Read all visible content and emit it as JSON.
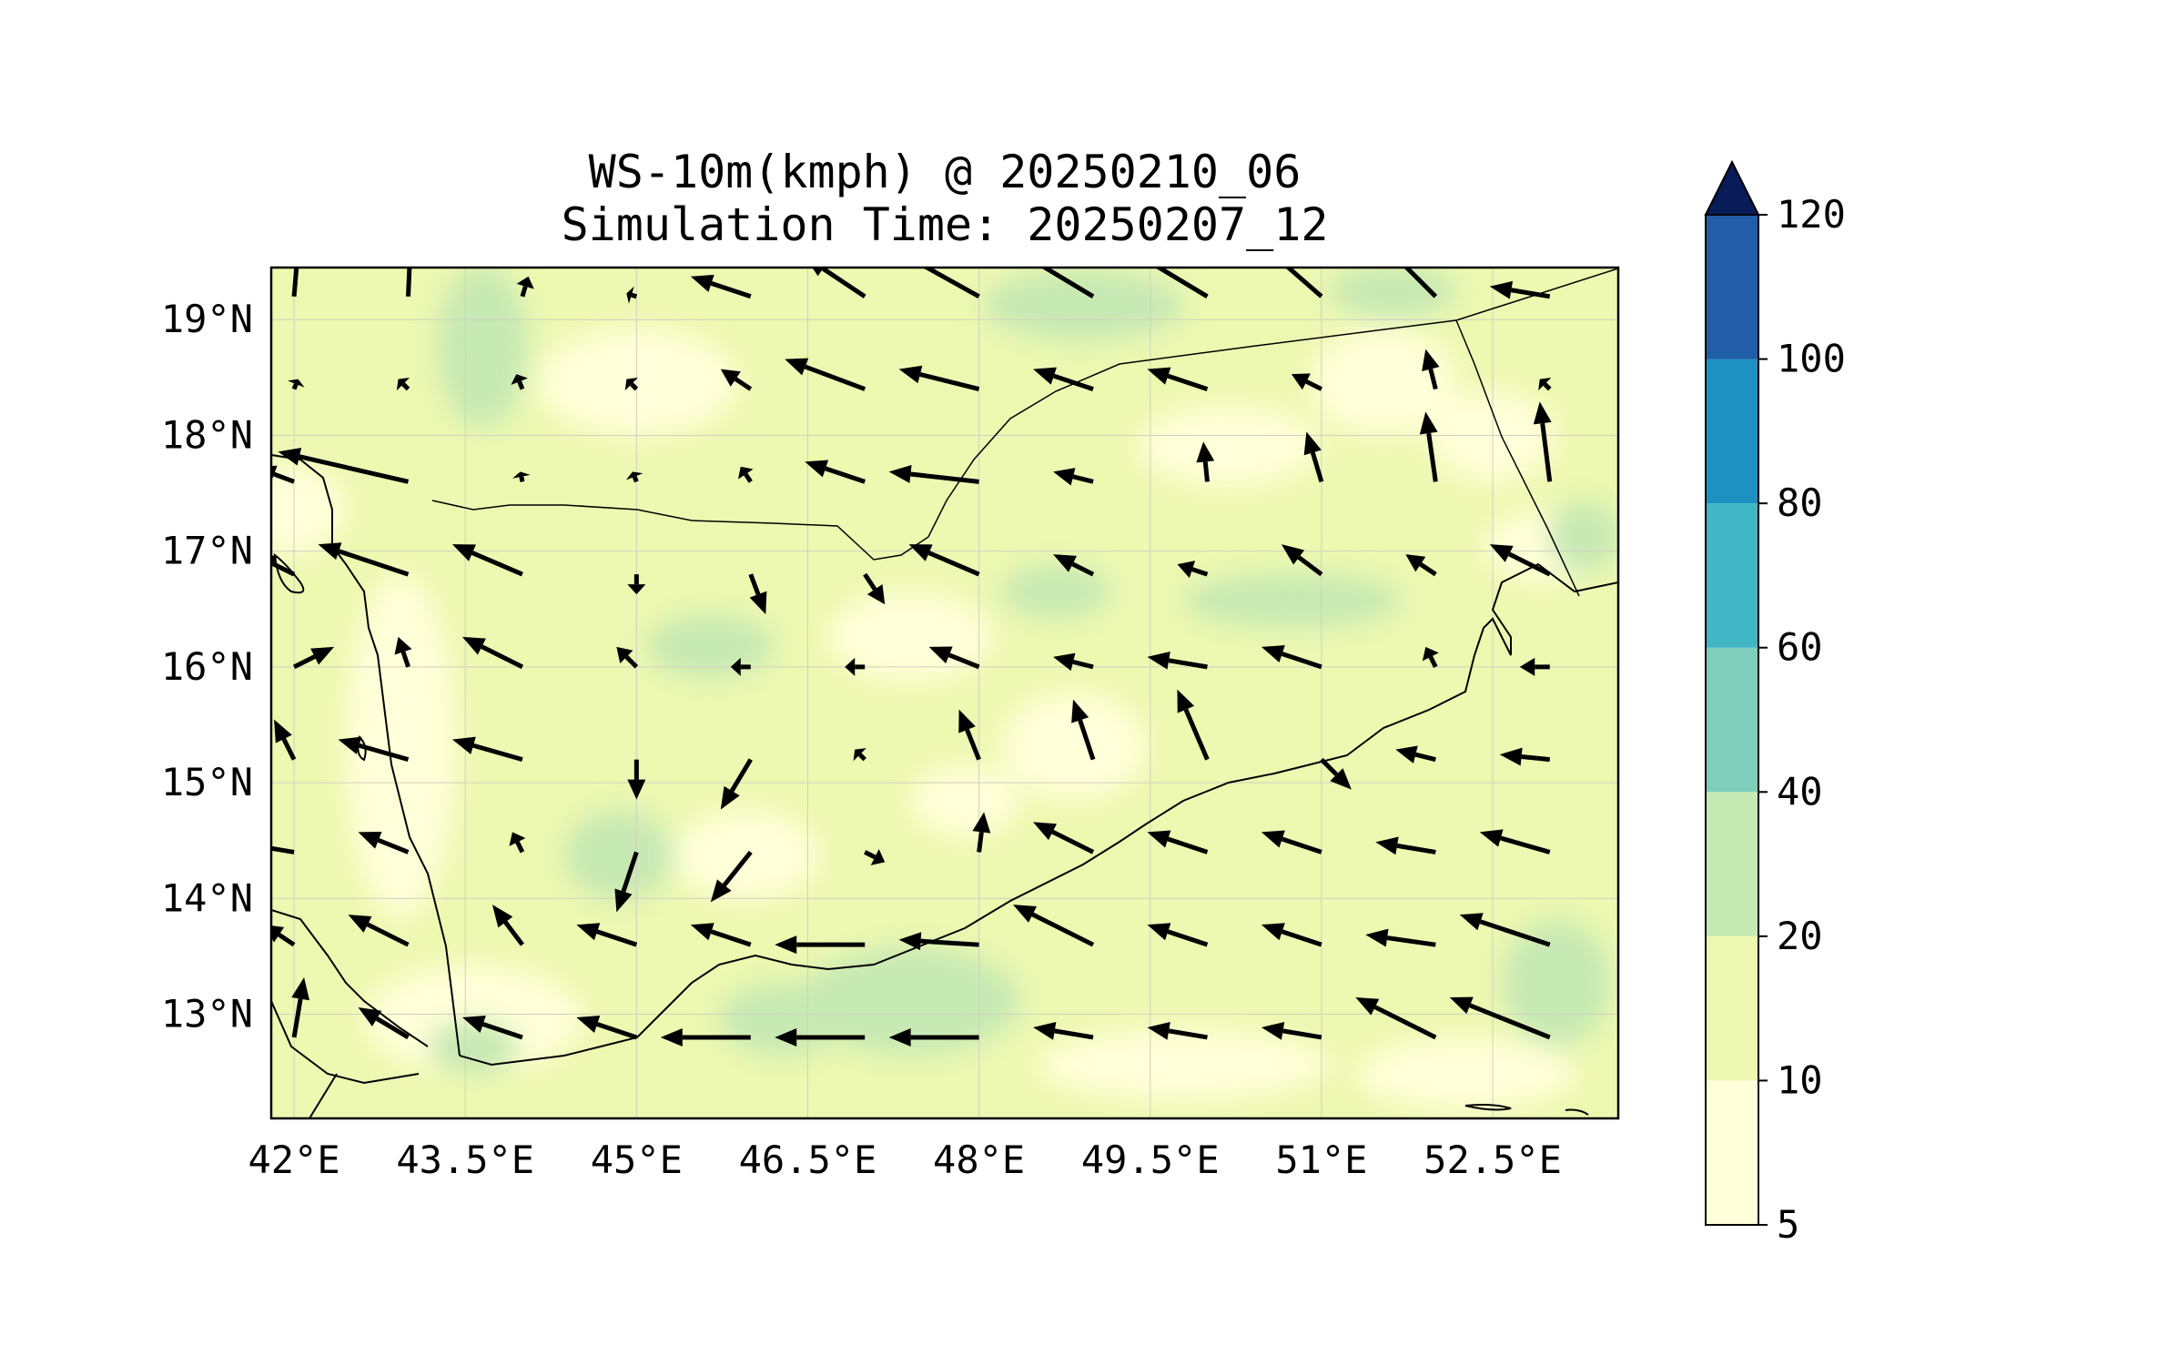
{
  "title": {
    "line1": "WS-10m(kmph) @ 20250210_06",
    "line2": "Simulation Time: 20250207_12"
  },
  "map": {
    "lon_range": [
      41.8,
      53.6
    ],
    "lat_range": [
      12.1,
      19.45
    ],
    "x_ticks": [
      {
        "lon": 42.0,
        "label": "42°E"
      },
      {
        "lon": 43.5,
        "label": "43.5°E"
      },
      {
        "lon": 45.0,
        "label": "45°E"
      },
      {
        "lon": 46.5,
        "label": "46.5°E"
      },
      {
        "lon": 48.0,
        "label": "48°E"
      },
      {
        "lon": 49.5,
        "label": "49.5°E"
      },
      {
        "lon": 51.0,
        "label": "51°E"
      },
      {
        "lon": 52.5,
        "label": "52.5°E"
      }
    ],
    "y_ticks": [
      {
        "lat": 19,
        "label": "19°N"
      },
      {
        "lat": 18,
        "label": "18°N"
      },
      {
        "lat": 17,
        "label": "17°N"
      },
      {
        "lat": 16,
        "label": "16°N"
      },
      {
        "lat": 15,
        "label": "15°N"
      },
      {
        "lat": 14,
        "label": "14°N"
      },
      {
        "lat": 13,
        "label": "13°N"
      }
    ],
    "grid": true,
    "vectors_note_units": "kmph"
  },
  "colorbar": {
    "levels": [
      5,
      10,
      20,
      40,
      60,
      80,
      100,
      120
    ],
    "labels": [
      "5",
      "10",
      "20",
      "40",
      "60",
      "80",
      "100",
      "120"
    ],
    "colors": [
      "#ffffd9",
      "#edf8b1",
      "#c7e9b4",
      "#7fcdbb",
      "#41b6c4",
      "#1d91c0",
      "#225ea8",
      "#253494"
    ],
    "extend_color": "#081d58",
    "extend": "max"
  },
  "chart_data": {
    "type": "quiver",
    "variable": "WS-10m(kmph)",
    "lon": [
      42.0,
      43.0,
      44.0,
      45.0,
      46.0,
      47.0,
      48.0,
      49.0,
      50.0,
      51.0,
      52.0,
      53.0
    ],
    "lat": [
      19.2,
      18.4,
      17.6,
      16.8,
      16.0,
      15.2,
      14.4,
      13.6,
      12.8
    ],
    "u": [
      [
        0.5,
        0.3,
        0.6,
        -1.0,
        -6.0,
        -6.0,
        -9.0,
        -10.0,
        -10.0,
        -8.0,
        -5.0,
        -6.0
      ],
      [
        0.4,
        -1.0,
        -0.6,
        -1.0,
        -3.0,
        -8.0,
        -8.0,
        -6.0,
        -6.0,
        -3.0,
        -1.0,
        -1.0
      ],
      [
        -4.0,
        -13.0,
        -0.2,
        -0.4,
        -1.0,
        -6.0,
        -9.0,
        -4.0,
        -0.4,
        -1.5,
        -1.0,
        -1.0
      ],
      [
        -4.0,
        -9.0,
        -7.0,
        0.0,
        1.5,
        2.0,
        -7.0,
        -4.0,
        -3.0,
        -4.0,
        -3.0,
        -6.0
      ],
      [
        4.0,
        -1.0,
        -6.0,
        -2.0,
        -2.0,
        -2.0,
        -5.0,
        -4.0,
        -6.0,
        -6.0,
        -1.0,
        -3.0
      ],
      [
        -2.0,
        -7.0,
        -7.0,
        0.0,
        -3.0,
        -1.0,
        -2.0,
        -2.0,
        -3.0,
        3.0,
        -4.0,
        -5.0
      ],
      [
        -6.0,
        -5.0,
        -1.0,
        -2.0,
        -4.0,
        2.0,
        0.5,
        -6.0,
        -6.0,
        -6.0,
        -6.0,
        -7.0
      ],
      [
        -3.0,
        -6.0,
        -3.0,
        -6.0,
        -6.0,
        -9.0,
        -8.0,
        -8.0,
        -6.0,
        -6.0,
        -7.0,
        -9.0
      ],
      [
        1.0,
        -5.0,
        -6.0,
        -6.0,
        -9.0,
        -9.0,
        -9.0,
        -6.0,
        -6.0,
        -6.0,
        -8.0,
        -10.0
      ]
    ],
    "v": [
      [
        6.0,
        7.0,
        2.0,
        0.3,
        2.0,
        4.0,
        5.0,
        6.0,
        6.0,
        7.0,
        5.0,
        1.0
      ],
      [
        1.0,
        1.0,
        1.5,
        1.0,
        2.0,
        3.0,
        2.0,
        2.0,
        2.0,
        1.5,
        4.0,
        1.0
      ],
      [
        1.5,
        3.0,
        1.0,
        1.0,
        1.5,
        2.0,
        1.0,
        1.0,
        4.0,
        5.0,
        7.0,
        8.0
      ],
      [
        2.0,
        3.0,
        3.0,
        -2.0,
        -4.0,
        -3.0,
        3.0,
        2.0,
        1.0,
        3.0,
        2.0,
        3.0
      ],
      [
        2.0,
        3.0,
        3.0,
        2.0,
        0.0,
        0.0,
        2.0,
        1.0,
        1.0,
        2.0,
        2.0,
        0.0
      ],
      [
        4.0,
        2.0,
        2.0,
        -4.0,
        -5.0,
        1.0,
        5.0,
        6.0,
        7.0,
        -3.0,
        1.0,
        0.5
      ],
      [
        1.0,
        2.0,
        2.0,
        -6.0,
        -5.0,
        -1.0,
        4.0,
        3.0,
        2.0,
        2.0,
        1.0,
        2.0
      ],
      [
        2.0,
        3.0,
        4.0,
        2.0,
        2.0,
        0.0,
        0.5,
        4.0,
        2.0,
        2.0,
        1.0,
        3.0
      ],
      [
        6.0,
        3.0,
        2.0,
        2.0,
        0.0,
        0.0,
        0.0,
        1.0,
        1.0,
        1.0,
        4.0,
        4.0
      ]
    ]
  }
}
